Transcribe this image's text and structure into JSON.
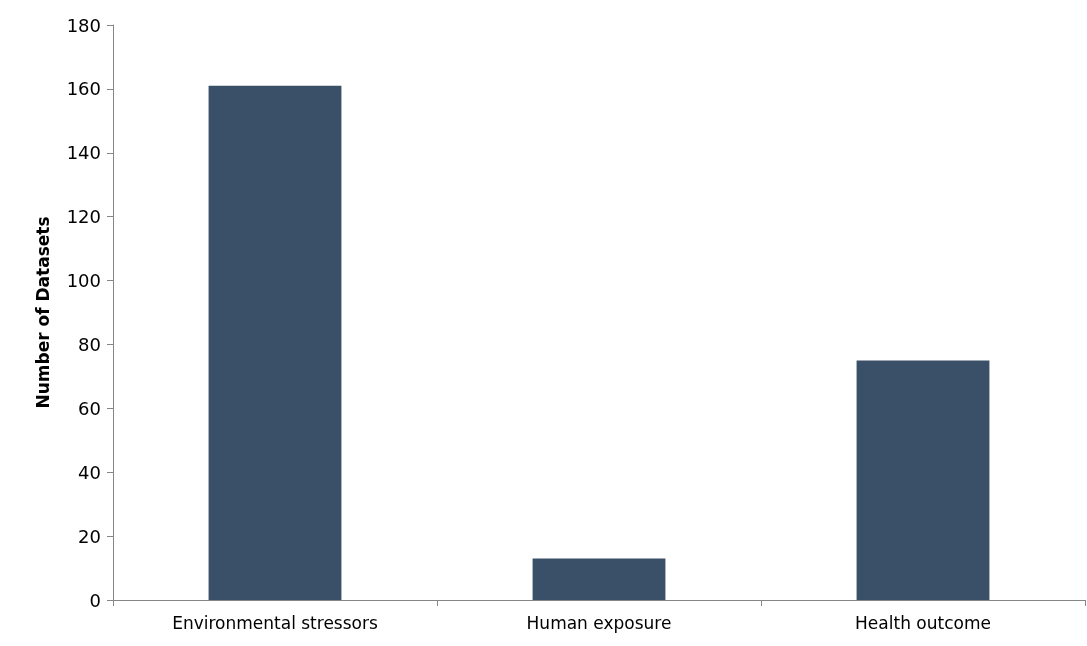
{
  "chart_data": {
    "type": "bar",
    "ylabel": "Number of Datasets",
    "categories": [
      "Environmental stressors",
      "Human exposure",
      "Health outcome"
    ],
    "values": [
      161,
      13,
      75
    ],
    "color": "#3a5068",
    "ylim": [
      0,
      180
    ],
    "yticks": [
      0,
      20,
      40,
      60,
      80,
      100,
      120,
      140,
      160,
      180
    ],
    "grid": false
  }
}
